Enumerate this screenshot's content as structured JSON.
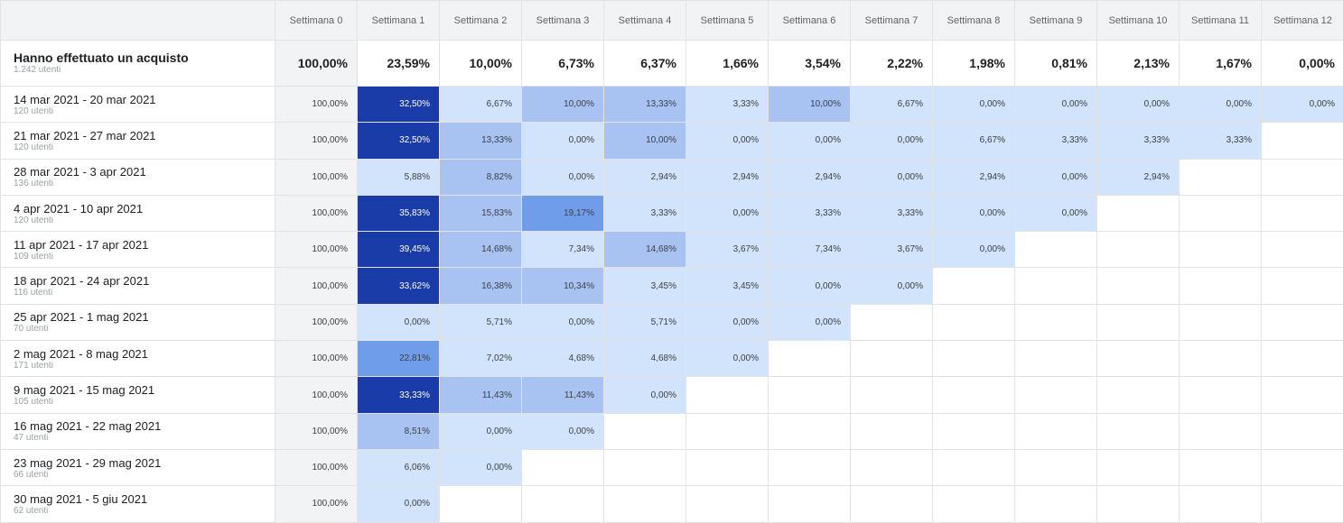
{
  "colors": {
    "level_0": "#d2e3fc",
    "level_1": "#a8c3f2",
    "level_2": "#6f9de9",
    "level_3": "#1a3ca9",
    "week0_bg": "#f1f3f4",
    "dark_text": "#ffffff"
  },
  "header": {
    "weeks": [
      "Settimana 0",
      "Settimana 1",
      "Settimana 2",
      "Settimana 3",
      "Settimana 4",
      "Settimana 5",
      "Settimana 6",
      "Settimana 7",
      "Settimana 8",
      "Settimana 9",
      "Settimana 10",
      "Settimana 11",
      "Settimana 12"
    ]
  },
  "summary": {
    "title": "Hanno effettuato un acquisto",
    "users": "1.242 utenti",
    "values": [
      "100,00%",
      "23,59%",
      "10,00%",
      "6,73%",
      "6,37%",
      "1,66%",
      "3,54%",
      "2,22%",
      "1,98%",
      "0,81%",
      "2,13%",
      "1,67%",
      "0,00%"
    ]
  },
  "rows": [
    {
      "label": "14 mar 2021 - 20 mar 2021",
      "users": "120 utenti",
      "values": [
        "100,00%",
        "32,50%",
        "6,67%",
        "10,00%",
        "13,33%",
        "3,33%",
        "10,00%",
        "6,67%",
        "0,00%",
        "0,00%",
        "0,00%",
        "0,00%",
        "0,00%"
      ]
    },
    {
      "label": "21 mar 2021 - 27 mar 2021",
      "users": "120 utenti",
      "values": [
        "100,00%",
        "32,50%",
        "13,33%",
        "0,00%",
        "10,00%",
        "0,00%",
        "0,00%",
        "0,00%",
        "6,67%",
        "3,33%",
        "3,33%",
        "3,33%"
      ]
    },
    {
      "label": "28 mar 2021 - 3 apr 2021",
      "users": "136 utenti",
      "values": [
        "100,00%",
        "5,88%",
        "8,82%",
        "0,00%",
        "2,94%",
        "2,94%",
        "2,94%",
        "0,00%",
        "2,94%",
        "0,00%",
        "2,94%"
      ]
    },
    {
      "label": "4 apr 2021 - 10 apr 2021",
      "users": "120 utenti",
      "values": [
        "100,00%",
        "35,83%",
        "15,83%",
        "19,17%",
        "3,33%",
        "0,00%",
        "3,33%",
        "3,33%",
        "0,00%",
        "0,00%"
      ]
    },
    {
      "label": "11 apr 2021 - 17 apr 2021",
      "users": "109 utenti",
      "values": [
        "100,00%",
        "39,45%",
        "14,68%",
        "7,34%",
        "14,68%",
        "3,67%",
        "7,34%",
        "3,67%",
        "0,00%"
      ]
    },
    {
      "label": "18 apr 2021 - 24 apr 2021",
      "users": "116 utenti",
      "values": [
        "100,00%",
        "33,62%",
        "16,38%",
        "10,34%",
        "3,45%",
        "3,45%",
        "0,00%",
        "0,00%"
      ]
    },
    {
      "label": "25 apr 2021 - 1 mag 2021",
      "users": "70 utenti",
      "values": [
        "100,00%",
        "0,00%",
        "5,71%",
        "0,00%",
        "5,71%",
        "0,00%",
        "0,00%"
      ]
    },
    {
      "label": "2 mag 2021 - 8 mag 2021",
      "users": "171 utenti",
      "values": [
        "100,00%",
        "22,81%",
        "7,02%",
        "4,68%",
        "4,68%",
        "0,00%"
      ]
    },
    {
      "label": "9 mag 2021 - 15 mag 2021",
      "users": "105 utenti",
      "values": [
        "100,00%",
        "33,33%",
        "11,43%",
        "11,43%",
        "0,00%"
      ]
    },
    {
      "label": "16 mag 2021 - 22 mag 2021",
      "users": "47 utenti",
      "values": [
        "100,00%",
        "8,51%",
        "0,00%",
        "0,00%"
      ]
    },
    {
      "label": "23 mag 2021 - 29 mag 2021",
      "users": "66 utenti",
      "values": [
        "100,00%",
        "6,06%",
        "0,00%"
      ]
    },
    {
      "label": "30 mag 2021 - 5 giu 2021",
      "users": "62 utenti",
      "values": [
        "100,00%",
        "0,00%"
      ]
    }
  ]
}
